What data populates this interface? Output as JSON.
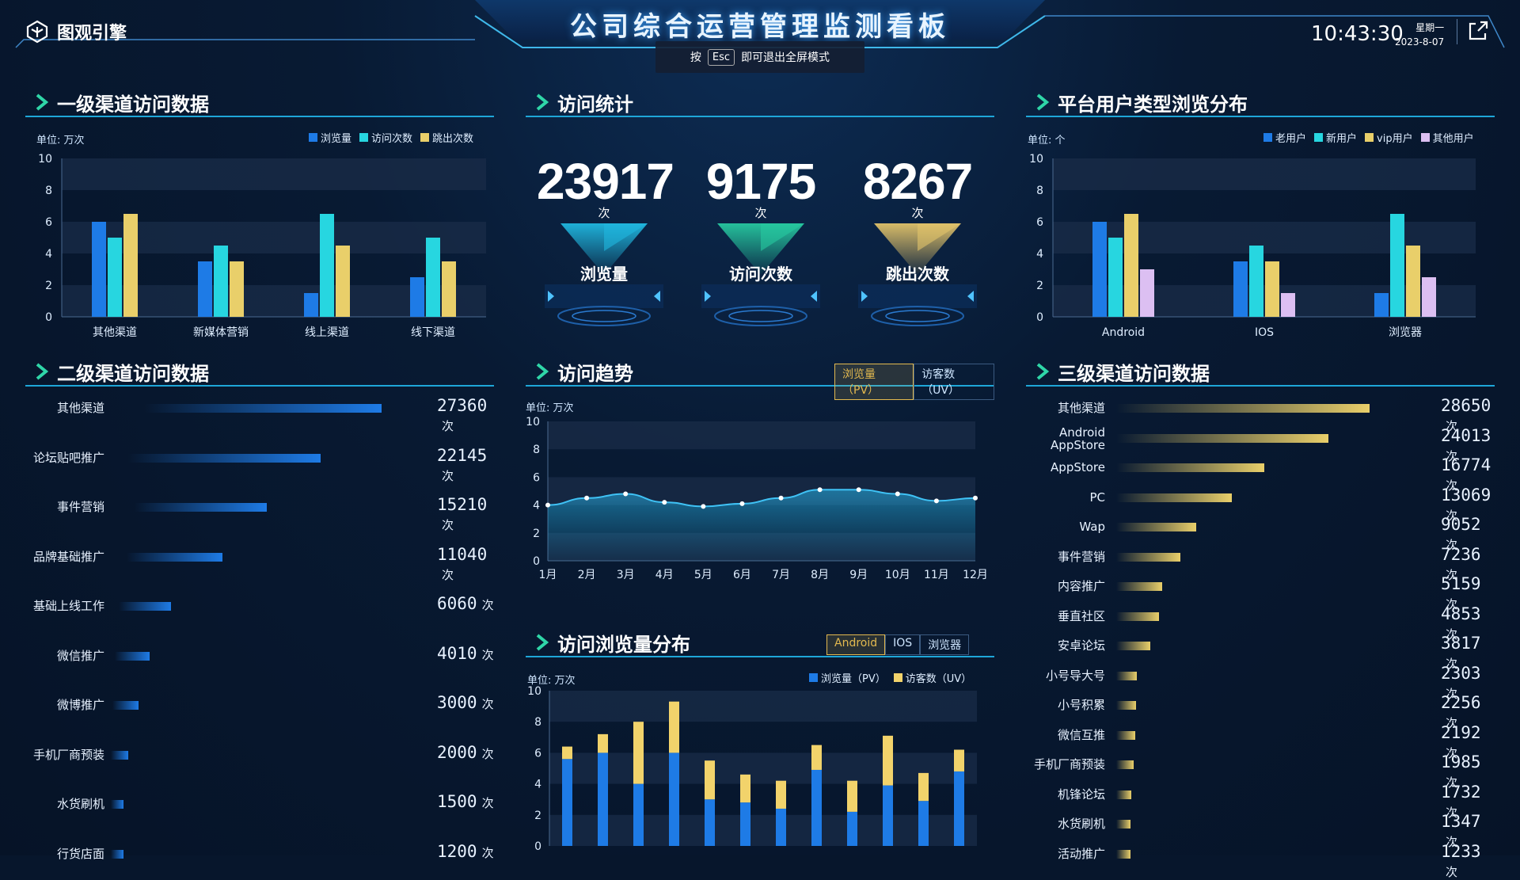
{
  "header": {
    "logo_text": "图观引擎",
    "title": "公司综合运营管理监测看板",
    "esc_prefix": "按",
    "esc_key": "Esc",
    "esc_suffix": "即可退出全屏模式",
    "time": "10:43:30",
    "weekday": "星期一",
    "date": "2023-8-07"
  },
  "colors": {
    "blue": "#1e7be6",
    "cyan": "#27d6e0",
    "gold": "#e9cf6a",
    "lilac": "#dcbff2",
    "accent": "#1ea6d8"
  },
  "panel1": {
    "title": "一级渠道访问数据",
    "unit": "单位: 万次",
    "legend": [
      "浏览量",
      "访问次数",
      "跳出次数"
    ],
    "chart_data": {
      "type": "bar",
      "categories": [
        "其他渠道",
        "新媒体营销",
        "线上渠道",
        "线下渠道"
      ],
      "series": [
        {
          "name": "浏览量",
          "values": [
            6,
            3.5,
            1.5,
            2.5
          ]
        },
        {
          "name": "访问次数",
          "values": [
            5,
            4.5,
            6.5,
            5
          ]
        },
        {
          "name": "跳出次数",
          "values": [
            6.5,
            3.5,
            4.5,
            3.5
          ]
        }
      ],
      "yticks": [
        "0",
        "2",
        "4",
        "6",
        "8",
        "10"
      ],
      "ylim": [
        0,
        10
      ]
    }
  },
  "stats": {
    "title": "访问统计",
    "items": [
      {
        "value": "23917",
        "unit": "次",
        "label": "浏览量",
        "color": "#20b8e0"
      },
      {
        "value": "9175",
        "unit": "次",
        "label": "访问次数",
        "color": "#27c9a0"
      },
      {
        "value": "8267",
        "unit": "次",
        "label": "跳出次数",
        "color": "#e3c46a"
      }
    ]
  },
  "panel3": {
    "title": "平台用户类型浏览分布",
    "unit": "单位: 个",
    "legend": [
      "老用户",
      "新用户",
      "vip用户",
      "其他用户"
    ],
    "chart_data": {
      "type": "bar",
      "categories": [
        "Android",
        "IOS",
        "浏览器"
      ],
      "series": [
        {
          "name": "老用户",
          "values": [
            6,
            3.5,
            1.5
          ]
        },
        {
          "name": "新用户",
          "values": [
            5,
            4.5,
            6.5
          ]
        },
        {
          "name": "vip用户",
          "values": [
            6.5,
            3.5,
            4.5
          ]
        },
        {
          "name": "其他用户",
          "values": [
            3,
            1.5,
            2.5
          ]
        }
      ],
      "yticks": [
        "0",
        "2",
        "4",
        "6",
        "8",
        "10"
      ],
      "ylim": [
        0,
        10
      ]
    }
  },
  "panel4": {
    "title": "二级渠道访问数据",
    "unit_label": "次",
    "rows": [
      {
        "label": "其他渠道",
        "value": "27360",
        "v": 27360
      },
      {
        "label": "论坛贴吧推广",
        "value": "22145",
        "v": 22145
      },
      {
        "label": "事件营销",
        "value": "15210",
        "v": 15210
      },
      {
        "label": "品牌基础推广",
        "value": "11040",
        "v": 11040
      },
      {
        "label": "基础上线工作",
        "value": "6060",
        "v": 6060
      },
      {
        "label": "微信推广",
        "value": "4010",
        "v": 4010
      },
      {
        "label": "微博推广",
        "value": "3000",
        "v": 3000
      },
      {
        "label": "手机厂商预装",
        "value": "2000",
        "v": 2000
      },
      {
        "label": "水货刷机",
        "value": "1500",
        "v": 1500
      },
      {
        "label": "行货店面",
        "value": "1200",
        "v": 1200
      }
    ]
  },
  "panel5": {
    "title": "访问趋势",
    "tabs": [
      "浏览量（PV）",
      "访客数（UV）"
    ],
    "unit": "单位: 万次",
    "chart_data": {
      "type": "area",
      "categories": [
        "1月",
        "2月",
        "3月",
        "4月",
        "5月",
        "6月",
        "7月",
        "8月",
        "9月",
        "10月",
        "11月",
        "12月"
      ],
      "values": [
        4,
        4.5,
        4.8,
        4.2,
        3.9,
        4.1,
        4.5,
        5.1,
        5.1,
        4.8,
        4.3,
        4.5
      ],
      "yticks": [
        "0",
        "2",
        "4",
        "6",
        "8",
        "10"
      ],
      "ylim": [
        0,
        10
      ]
    }
  },
  "panel6": {
    "title": "访问浏览量分布",
    "tabs": [
      "Android",
      "IOS",
      "浏览器"
    ],
    "unit": "单位: 万次",
    "legend": [
      "浏览量（PV）",
      "访客数（UV）"
    ],
    "chart_data": {
      "type": "bar",
      "stacked": true,
      "series": [
        {
          "name": "浏览量（PV）",
          "values": [
            5.6,
            6,
            4,
            6,
            3,
            2.8,
            2.4,
            4.9,
            2.2,
            3.9,
            2.9,
            4.8
          ]
        },
        {
          "name": "访客数（UV）",
          "values": [
            0.8,
            1.2,
            4,
            3.3,
            2.5,
            1.8,
            1.8,
            1.6,
            2,
            3.2,
            1.8,
            1.4
          ]
        }
      ],
      "yticks": [
        "0",
        "2",
        "4",
        "6",
        "8",
        "10"
      ],
      "ylim": [
        0,
        10
      ]
    }
  },
  "panel7": {
    "title": "三级渠道访问数据",
    "unit_label": "次",
    "rows": [
      {
        "label": "其他渠道",
        "value": "28650",
        "v": 28650
      },
      {
        "label": "Android\nAppStore",
        "value": "24013",
        "v": 24013
      },
      {
        "label": "AppStore",
        "value": "16774",
        "v": 16774
      },
      {
        "label": "PC",
        "value": "13069",
        "v": 13069
      },
      {
        "label": "Wap",
        "value": "9052",
        "v": 9052
      },
      {
        "label": "事件营销",
        "value": "7236",
        "v": 7236
      },
      {
        "label": "内容推广",
        "value": "5159",
        "v": 5159
      },
      {
        "label": "垂直社区",
        "value": "4853",
        "v": 4853
      },
      {
        "label": "安卓论坛",
        "value": "3817",
        "v": 3817
      },
      {
        "label": "小号导大号",
        "value": "2303",
        "v": 2303
      },
      {
        "label": "小号积累",
        "value": "2256",
        "v": 2256
      },
      {
        "label": "微信互推",
        "value": "2192",
        "v": 2192
      },
      {
        "label": "手机厂商预装",
        "value": "1985",
        "v": 1985
      },
      {
        "label": "机锋论坛",
        "value": "1732",
        "v": 1732
      },
      {
        "label": "水货刷机",
        "value": "1347",
        "v": 1347
      },
      {
        "label": "活动推广",
        "value": "1233",
        "v": 1233
      }
    ]
  }
}
